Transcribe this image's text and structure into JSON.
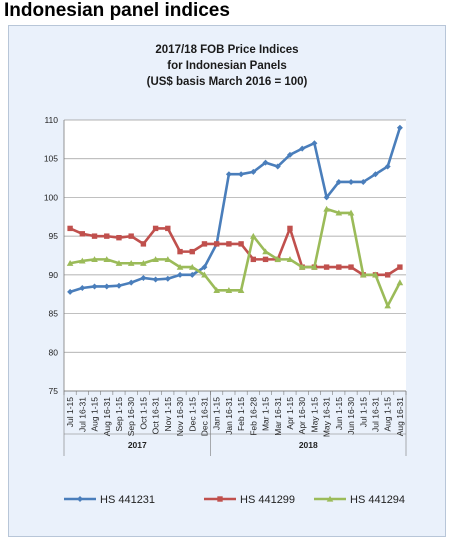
{
  "page_heading": "Indonesian panel indices",
  "chart_data": {
    "type": "line",
    "title": [
      "2017/18 FOB Price Indices",
      "for Indonesian Panels",
      "(US$ basis March 2016 = 100)"
    ],
    "xlabel": "",
    "ylabel": "",
    "ylim": [
      75,
      110
    ],
    "yticks": [
      75,
      80,
      85,
      90,
      95,
      100,
      105,
      110
    ],
    "grid": true,
    "legend_position": "bottom",
    "categories": [
      "Jul 1-15",
      "Jul 16-31",
      "Aug 1-15",
      "Aug 16-31",
      "Sep 1-15",
      "Sep 16-30",
      "Oct 1-15",
      "Oct 16-31",
      "Nov 1-15",
      "Nov 16-30",
      "Dec 1-15",
      "Dec 16-31",
      "Jan 1-15",
      "Jan 16-31",
      "Feb 1-15",
      "Feb 16-28",
      "Mar 1-15",
      "Mar 16-31",
      "Apr 1-15",
      "Apr 16-30",
      "May 1-15",
      "May 16-31",
      "Jun 1-15",
      "Jun 16-30",
      "Jul 1-15",
      "Jul 16-31",
      "Aug 1-15",
      "Aug 16-31"
    ],
    "year_groups": [
      {
        "label": "2017",
        "start": 0,
        "end": 11
      },
      {
        "label": "2018",
        "start": 12,
        "end": 27
      }
    ],
    "series": [
      {
        "name": "HS 441231",
        "color": "#4a7ebb",
        "marker": "diamond",
        "values": [
          87.8,
          88.3,
          88.5,
          88.5,
          88.6,
          89.0,
          89.6,
          89.4,
          89.5,
          90.0,
          90.0,
          91.0,
          94.0,
          103.0,
          103.0,
          103.3,
          104.5,
          104.0,
          105.5,
          106.3,
          107.0,
          100.0,
          102.0,
          102.0,
          102.0,
          103.0,
          104.0,
          109.0
        ]
      },
      {
        "name": "HS 441299",
        "color": "#c0504d",
        "marker": "square",
        "values": [
          96.0,
          95.3,
          95.0,
          95.0,
          94.8,
          95.0,
          94.0,
          96.0,
          96.0,
          93.0,
          93.0,
          94.0,
          94.0,
          94.0,
          94.0,
          92.0,
          92.0,
          92.0,
          96.0,
          91.0,
          91.0,
          91.0,
          91.0,
          91.0,
          90.0,
          90.0,
          90.0,
          91.0
        ]
      },
      {
        "name": "HS 441294",
        "color": "#9bbb59",
        "marker": "triangle",
        "values": [
          91.5,
          91.8,
          92.0,
          92.0,
          91.5,
          91.5,
          91.5,
          92.0,
          92.0,
          91.0,
          91.0,
          90.0,
          88.0,
          88.0,
          88.0,
          95.0,
          93.0,
          92.0,
          92.0,
          91.0,
          91.0,
          98.5,
          98.0,
          98.0,
          90.0,
          90.0,
          86.0,
          89.0
        ]
      }
    ]
  }
}
